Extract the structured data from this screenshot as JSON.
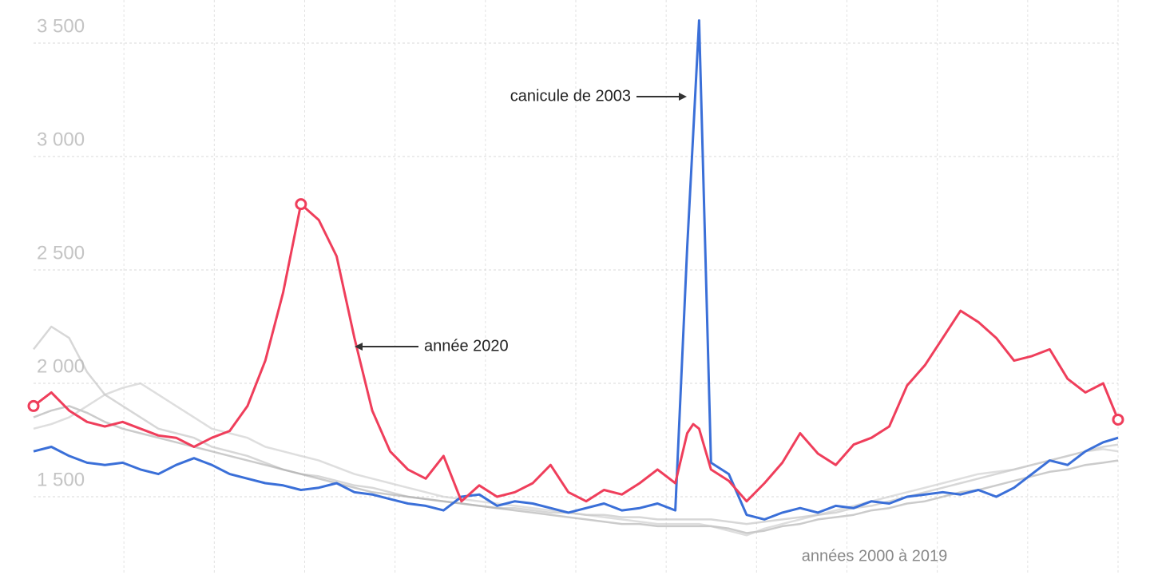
{
  "chart_data": {
    "type": "line",
    "x": [
      1,
      7,
      13,
      19,
      25,
      31,
      37,
      43,
      49,
      55,
      61,
      67,
      73,
      79,
      85,
      91,
      97,
      103,
      109,
      115,
      121,
      127,
      133,
      139,
      145,
      151,
      157,
      163,
      169,
      175,
      181,
      187,
      193,
      199,
      205,
      211,
      217,
      221,
      223,
      225,
      229,
      235,
      241,
      247,
      253,
      259,
      265,
      271,
      277,
      283,
      289,
      295,
      301,
      307,
      313,
      319,
      325,
      331,
      337,
      343,
      349,
      355,
      361,
      366
    ],
    "xlim": [
      1,
      366
    ],
    "ylim": [
      1155,
      3690
    ],
    "yticks": [
      {
        "value": 1500,
        "label": "1 500"
      },
      {
        "value": 2000,
        "label": "2 000"
      },
      {
        "value": 2500,
        "label": "2 500"
      },
      {
        "value": 3000,
        "label": "3 000"
      },
      {
        "value": 3500,
        "label": "3 500"
      }
    ],
    "grid": true,
    "series": [
      {
        "color": "#bdbdbd",
        "values": [
          2150,
          2250,
          2200,
          2050,
          1950,
          1900,
          1850,
          1800,
          1780,
          1760,
          1720,
          1700,
          1680,
          1650,
          1620,
          1600,
          1590,
          1570,
          1550,
          1540,
          1520,
          1500,
          1490,
          1480,
          1470,
          1460,
          1450,
          1450,
          1440,
          1430,
          1430,
          1420,
          1420,
          1410,
          1410,
          1400,
          1400,
          1400,
          1400,
          1400,
          1400,
          1390,
          1380,
          1390,
          1400,
          1410,
          1420,
          1430,
          1450,
          1460,
          1480,
          1500,
          1520,
          1540,
          1560,
          1580,
          1600,
          1620,
          1640,
          1660,
          1680,
          1700,
          1720,
          1730
        ]
      },
      {
        "color": "#a8a8a8",
        "values": [
          1850,
          1880,
          1900,
          1870,
          1830,
          1800,
          1780,
          1760,
          1740,
          1720,
          1700,
          1680,
          1660,
          1640,
          1620,
          1600,
          1580,
          1560,
          1540,
          1520,
          1510,
          1500,
          1490,
          1480,
          1470,
          1460,
          1450,
          1440,
          1430,
          1420,
          1410,
          1400,
          1390,
          1380,
          1380,
          1370,
          1370,
          1370,
          1370,
          1370,
          1370,
          1360,
          1340,
          1350,
          1370,
          1380,
          1400,
          1410,
          1420,
          1440,
          1450,
          1470,
          1480,
          1500,
          1520,
          1530,
          1550,
          1570,
          1590,
          1610,
          1620,
          1640,
          1650,
          1660
        ]
      },
      {
        "color": "#c8c8c8",
        "values": [
          1800,
          1820,
          1850,
          1900,
          1950,
          1980,
          2000,
          1950,
          1900,
          1850,
          1800,
          1780,
          1760,
          1720,
          1700,
          1680,
          1660,
          1630,
          1600,
          1580,
          1560,
          1540,
          1520,
          1500,
          1490,
          1480,
          1470,
          1460,
          1450,
          1440,
          1430,
          1420,
          1410,
          1400,
          1390,
          1380,
          1380,
          1380,
          1380,
          1380,
          1370,
          1350,
          1330,
          1360,
          1380,
          1400,
          1420,
          1440,
          1460,
          1480,
          1500,
          1520,
          1540,
          1560,
          1580,
          1600,
          1610,
          1620,
          1640,
          1660,
          1680,
          1700,
          1710,
          1700
        ]
      },
      {
        "color": "#3a6fd8",
        "values": [
          1700,
          1720,
          1680,
          1650,
          1640,
          1650,
          1620,
          1600,
          1640,
          1670,
          1640,
          1600,
          1580,
          1560,
          1550,
          1530,
          1540,
          1560,
          1520,
          1510,
          1490,
          1470,
          1460,
          1440,
          1500,
          1510,
          1460,
          1480,
          1470,
          1450,
          1430,
          1450,
          1470,
          1440,
          1450,
          1470,
          1440,
          2600,
          3100,
          3600,
          1650,
          1600,
          1420,
          1400,
          1430,
          1450,
          1430,
          1460,
          1450,
          1480,
          1470,
          1500,
          1510,
          1520,
          1510,
          1530,
          1500,
          1540,
          1600,
          1660,
          1640,
          1700,
          1740,
          1760
        ]
      },
      {
        "color": "#ef3e5b",
        "values": [
          1900,
          1960,
          1880,
          1830,
          1810,
          1830,
          1800,
          1770,
          1760,
          1720,
          1760,
          1790,
          1900,
          2100,
          2400,
          2790,
          2720,
          2560,
          2200,
          1880,
          1700,
          1620,
          1580,
          1680,
          1480,
          1550,
          1500,
          1520,
          1560,
          1640,
          1520,
          1480,
          1530,
          1510,
          1560,
          1620,
          1560,
          1780,
          1820,
          1800,
          1620,
          1570,
          1480,
          1560,
          1650,
          1780,
          1690,
          1640,
          1730,
          1760,
          1810,
          1990,
          2080,
          2200,
          2320,
          2270,
          2200,
          2100,
          2120,
          2150,
          2020,
          1960,
          2000,
          1840
        ]
      }
    ],
    "annotations": [
      "canicule de 2003",
      "année 2020",
      "années 2000 à 2019"
    ]
  }
}
